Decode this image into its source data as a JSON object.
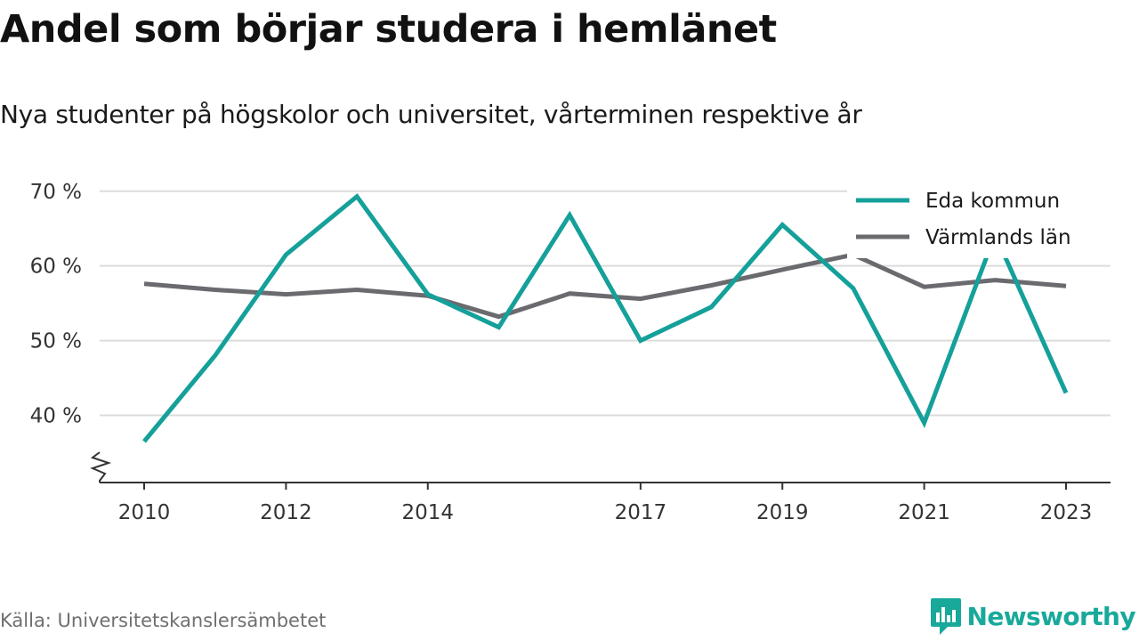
{
  "title": "Andel som börjar studera i hemlänet",
  "subtitle": "Nya studenter på högskolor och universitet, vårterminen respektive år",
  "source": "Källa: Universitetskanslersämbetet",
  "brand": "Newsworthy",
  "colors": {
    "eda": "#15a09a",
    "varmland": "#6b6a6f",
    "grid": "#dcdcdc",
    "axis": "#333333",
    "brand": "#18a99b"
  },
  "chart_data": {
    "type": "line",
    "x": [
      2010,
      2011,
      2012,
      2013,
      2014,
      2015,
      2016,
      2017,
      2018,
      2019,
      2020,
      2021,
      2022,
      2023
    ],
    "x_ticks": [
      2010,
      2012,
      2014,
      2017,
      2019,
      2021,
      2023
    ],
    "y_ticks": [
      {
        "value": 40,
        "label": "40 %"
      },
      {
        "value": 50,
        "label": "50 %"
      },
      {
        "value": 60,
        "label": "60 %"
      },
      {
        "value": 70,
        "label": "70 %"
      }
    ],
    "ylim": [
      31,
      72
    ],
    "y_axis_break": true,
    "grid": true,
    "legend_position": "top-right",
    "series": [
      {
        "key": "eda",
        "name": "Eda kommun",
        "values": [
          36.5,
          48.0,
          61.5,
          69.3,
          56.2,
          51.8,
          66.8,
          50.0,
          54.5,
          65.5,
          57.0,
          39.0,
          64.2,
          43.0
        ]
      },
      {
        "key": "varmland",
        "name": "Värmlands län",
        "values": [
          57.6,
          56.8,
          56.2,
          56.8,
          56.0,
          53.2,
          56.3,
          55.6,
          57.4,
          59.5,
          61.5,
          57.2,
          58.1,
          57.3
        ]
      }
    ]
  }
}
